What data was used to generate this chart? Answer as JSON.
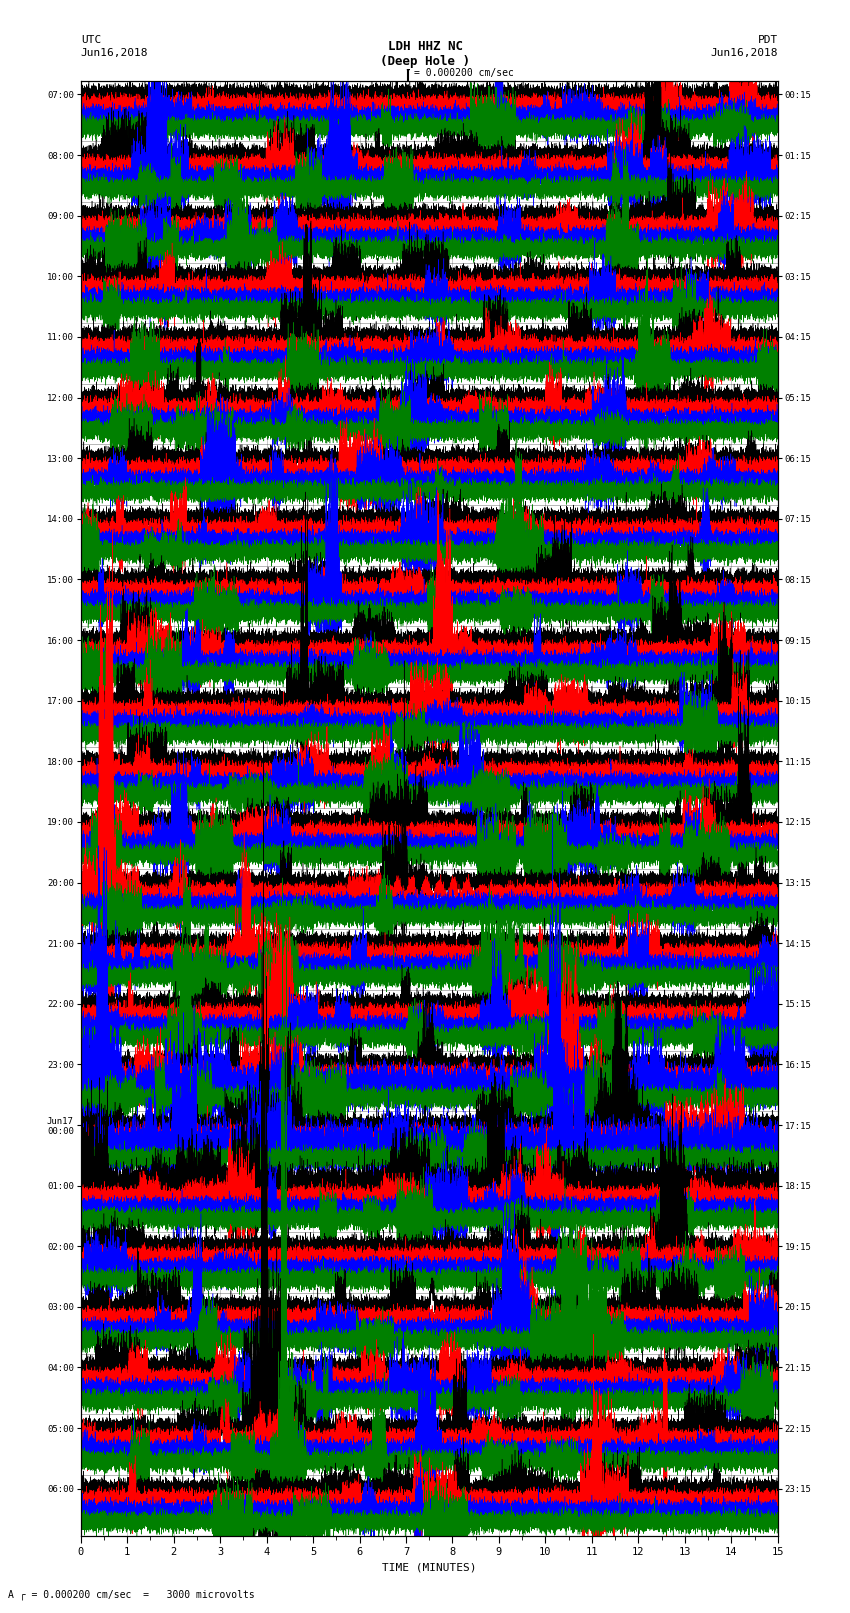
{
  "title_line1": "LDH HHZ NC",
  "title_line2": "(Deep Hole )",
  "label_left_top": "UTC",
  "label_left_date": "Jun16,2018",
  "label_right_top": "PDT",
  "label_right_date": "Jun16,2018",
  "scale_label": "= 0.000200 cm/sec",
  "xlabel": "TIME (MINUTES)",
  "colors": [
    "black",
    "red",
    "blue",
    "green"
  ],
  "utc_times": [
    "07:00",
    "08:00",
    "09:00",
    "10:00",
    "11:00",
    "12:00",
    "13:00",
    "14:00",
    "15:00",
    "16:00",
    "17:00",
    "18:00",
    "19:00",
    "20:00",
    "21:00",
    "22:00",
    "23:00",
    "Jun17\n00:00",
    "01:00",
    "02:00",
    "03:00",
    "04:00",
    "05:00",
    "06:00"
  ],
  "pdt_times": [
    "00:15",
    "01:15",
    "02:15",
    "03:15",
    "04:15",
    "05:15",
    "06:15",
    "07:15",
    "08:15",
    "09:15",
    "10:15",
    "11:15",
    "12:15",
    "13:15",
    "14:15",
    "15:15",
    "16:15",
    "17:15",
    "18:15",
    "19:15",
    "20:15",
    "21:15",
    "22:15",
    "23:15"
  ],
  "n_rows": 24,
  "n_channels": 4,
  "duration_minutes": 15,
  "fig_width": 8.5,
  "fig_height": 16.13,
  "dpi": 100
}
